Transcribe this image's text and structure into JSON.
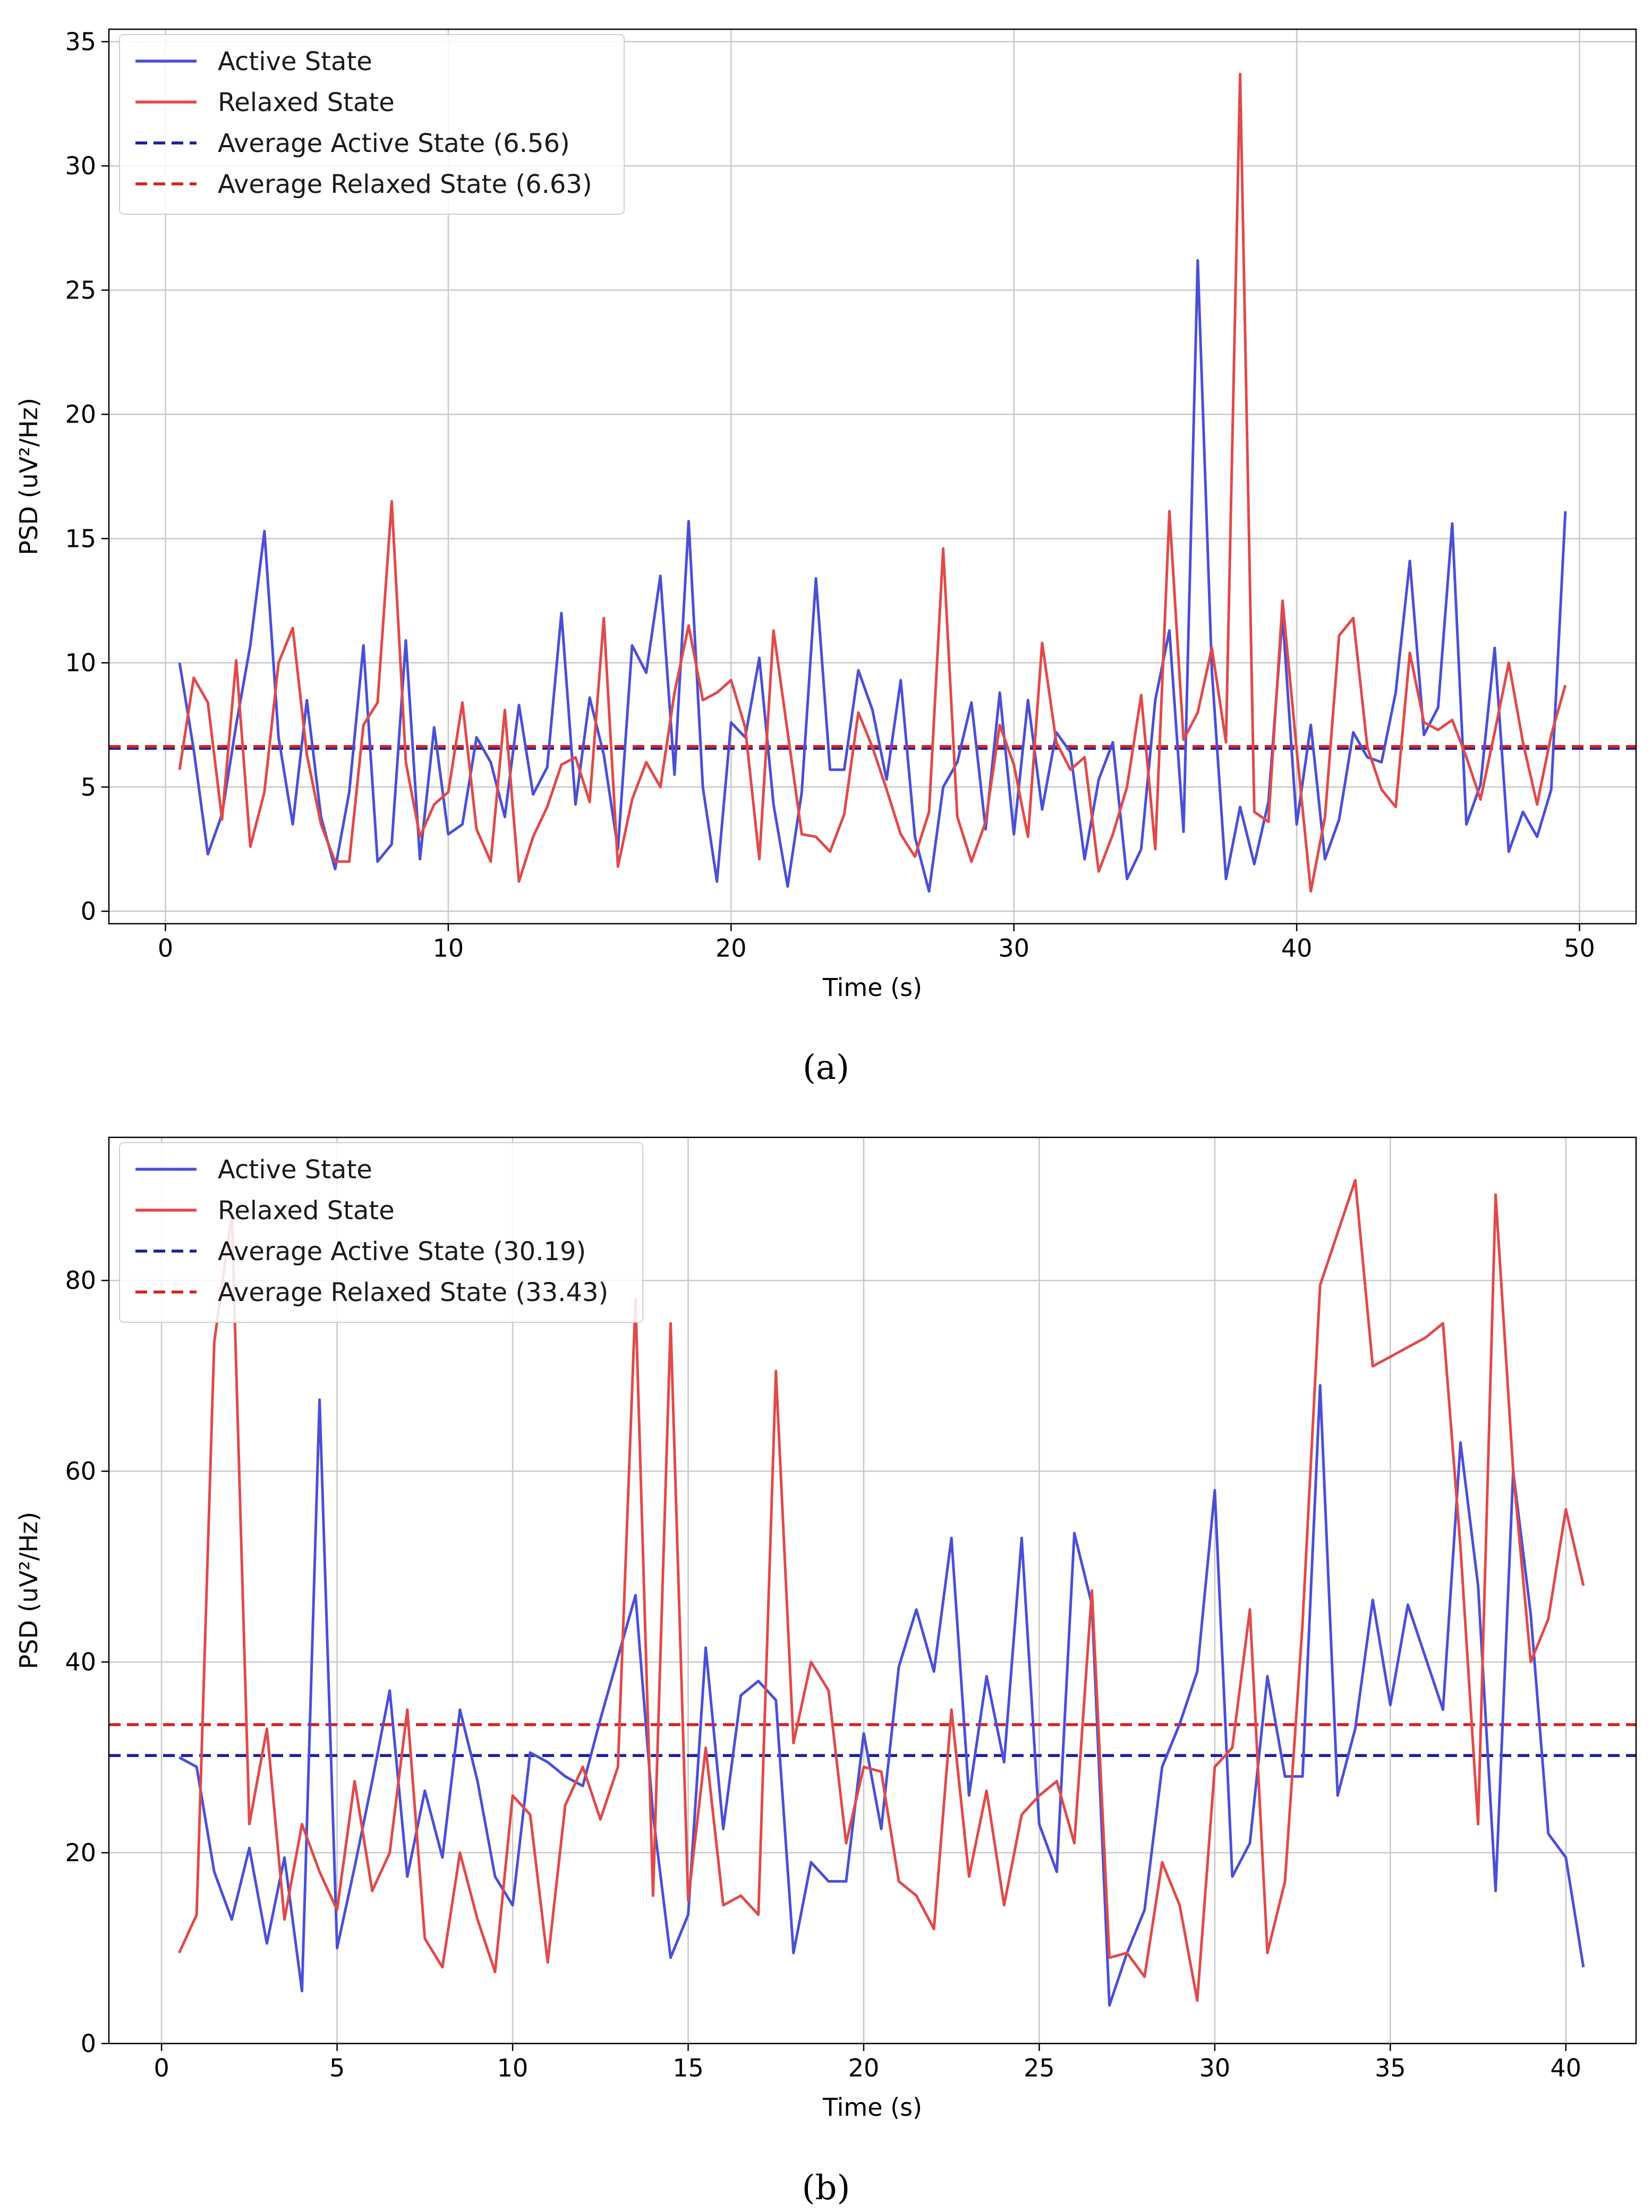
{
  "figure": {
    "colors": {
      "active": "#4a4fd6",
      "relaxed": "#e04a4a",
      "active_avg": "#1c1ca0",
      "relaxed_avg": "#d42020",
      "grid": "#c8c8c8"
    }
  },
  "chart_data": [
    {
      "type": "line",
      "panel_label": "a",
      "caption": "(a)",
      "xlabel": "Time (s)",
      "ylabel": "PSD (uV²/Hz)",
      "xlim": [
        -2,
        52
      ],
      "ylim": [
        -0.5,
        35.5
      ],
      "xticks": [
        0,
        10,
        20,
        30,
        40,
        50
      ],
      "yticks": [
        0,
        5,
        10,
        15,
        20,
        25,
        30,
        35
      ],
      "grid": true,
      "legend_position": "top-left",
      "series": [
        {
          "name": "Active State",
          "style": "solid",
          "color": "#4a4fd6",
          "x": [
            0.5,
            1.0,
            1.5,
            2.0,
            2.5,
            3.0,
            3.5,
            4.0,
            4.5,
            5.0,
            5.5,
            6.0,
            6.5,
            7.0,
            7.5,
            8.0,
            8.5,
            9.0,
            9.5,
            10.0,
            10.5,
            11.0,
            11.5,
            12.0,
            12.5,
            13.0,
            13.5,
            14.0,
            14.5,
            15.0,
            15.5,
            16.0,
            16.5,
            17.0,
            17.5,
            18.0,
            18.5,
            19.0,
            19.5,
            20.0,
            20.5,
            21.0,
            21.5,
            22.0,
            22.5,
            23.0,
            23.5,
            24.0,
            24.5,
            25.0,
            25.5,
            26.0,
            26.5,
            27.0,
            27.5,
            28.0,
            28.5,
            29.0,
            29.5,
            30.0,
            30.5,
            31.0,
            31.5,
            32.0,
            32.5,
            33.0,
            33.5,
            34.0,
            34.5,
            35.0,
            35.5,
            36.0,
            36.5,
            37.0,
            37.5,
            38.0,
            38.5,
            39.0,
            39.5,
            40.0,
            40.5,
            41.0,
            41.5,
            42.0,
            42.5,
            43.0,
            43.5,
            44.0,
            44.5,
            45.0,
            45.5,
            46.0,
            46.5,
            47.0,
            47.5,
            48.0,
            48.5,
            49.0,
            49.5
          ],
          "values": [
            10.0,
            6.5,
            2.3,
            3.9,
            7.5,
            10.7,
            15.3,
            7.0,
            3.5,
            8.5,
            3.8,
            1.7,
            4.8,
            10.7,
            2.0,
            2.7,
            10.9,
            2.1,
            7.4,
            3.1,
            3.5,
            7.0,
            6.0,
            3.8,
            8.3,
            4.7,
            5.8,
            12.0,
            4.3,
            8.6,
            6.3,
            2.5,
            10.7,
            9.6,
            13.5,
            5.5,
            15.7,
            5.0,
            1.2,
            7.6,
            7.0,
            10.2,
            4.3,
            1.0,
            4.8,
            13.4,
            5.7,
            5.7,
            9.7,
            8.1,
            5.3,
            9.3,
            3.0,
            0.8,
            5.0,
            6.0,
            8.4,
            3.3,
            8.8,
            3.1,
            8.5,
            4.1,
            7.2,
            6.4,
            2.1,
            5.3,
            6.8,
            1.3,
            2.5,
            8.5,
            11.3,
            3.2,
            26.2,
            9.7,
            1.3,
            4.2,
            1.9,
            4.4,
            11.9,
            3.5,
            7.5,
            2.1,
            3.7,
            7.2,
            6.2,
            6.0,
            8.8,
            14.1,
            7.1,
            8.2,
            15.6,
            3.5,
            5.1,
            10.6,
            2.4,
            4.0,
            3.0,
            4.9,
            16.1
          ]
        },
        {
          "name": "Relaxed State",
          "style": "solid",
          "color": "#e04a4a",
          "x": [
            0.5,
            1.0,
            1.5,
            2.0,
            2.5,
            3.0,
            3.5,
            4.0,
            4.5,
            5.0,
            5.5,
            6.0,
            6.5,
            7.0,
            7.5,
            8.0,
            8.5,
            9.0,
            9.5,
            10.0,
            10.5,
            11.0,
            11.5,
            12.0,
            12.5,
            13.0,
            13.5,
            14.0,
            14.5,
            15.0,
            15.5,
            16.0,
            16.5,
            17.0,
            17.5,
            18.0,
            18.5,
            19.0,
            19.5,
            20.0,
            20.5,
            21.0,
            21.5,
            22.0,
            22.5,
            23.0,
            23.5,
            24.0,
            24.5,
            25.0,
            25.5,
            26.0,
            26.5,
            27.0,
            27.5,
            28.0,
            28.5,
            29.0,
            29.5,
            30.0,
            30.5,
            31.0,
            31.5,
            32.0,
            32.5,
            33.0,
            33.5,
            34.0,
            34.5,
            35.0,
            35.5,
            36.0,
            36.5,
            37.0,
            37.5,
            38.0,
            38.5,
            39.0,
            39.5,
            40.0,
            40.5,
            41.0,
            41.5,
            42.0,
            42.5,
            43.0,
            43.5,
            44.0,
            44.5,
            45.0,
            45.5,
            46.0,
            46.5,
            47.0,
            47.5,
            48.0,
            48.5,
            49.0,
            49.5
          ],
          "values": [
            5.7,
            9.4,
            8.4,
            3.7,
            10.1,
            2.6,
            4.8,
            10.0,
            11.4,
            6.3,
            3.5,
            2.0,
            2.0,
            7.5,
            8.4,
            16.5,
            6.0,
            3.0,
            4.3,
            4.8,
            8.4,
            3.3,
            2.0,
            8.1,
            1.2,
            3.0,
            4.2,
            5.9,
            6.2,
            4.4,
            11.8,
            1.8,
            4.5,
            6.0,
            5.0,
            8.8,
            11.5,
            8.5,
            8.8,
            9.3,
            7.4,
            2.1,
            11.3,
            7.2,
            3.1,
            3.0,
            2.4,
            3.9,
            8.0,
            6.6,
            4.9,
            3.1,
            2.2,
            4.0,
            14.6,
            3.8,
            2.0,
            3.6,
            7.5,
            5.9,
            3.0,
            10.8,
            6.8,
            5.7,
            6.2,
            1.6,
            3.1,
            5.0,
            8.7,
            2.5,
            16.1,
            6.9,
            8.0,
            10.6,
            6.8,
            33.7,
            4.0,
            3.6,
            12.5,
            6.5,
            0.8,
            3.8,
            11.1,
            11.8,
            6.6,
            4.9,
            4.2,
            10.4,
            7.6,
            7.3,
            7.7,
            6.2,
            4.5,
            7.2,
            10.0,
            6.8,
            4.3,
            7.1,
            9.1
          ]
        },
        {
          "name": "Average Active State (6.56)",
          "style": "dashed",
          "color": "#1c1ca0",
          "value": 6.56
        },
        {
          "name": "Average Relaxed State (6.63)",
          "style": "dashed",
          "color": "#d42020",
          "value": 6.63
        }
      ]
    },
    {
      "type": "line",
      "panel_label": "b",
      "caption": "(b)",
      "xlabel": "Time (s)",
      "ylabel": "PSD (uV²/Hz)",
      "xlim": [
        -1.5,
        42.0
      ],
      "ylim": [
        0,
        95
      ],
      "xticks": [
        0,
        5,
        10,
        15,
        20,
        25,
        30,
        35,
        40
      ],
      "yticks": [
        0,
        20,
        40,
        60,
        80
      ],
      "grid": true,
      "legend_position": "top-left",
      "series": [
        {
          "name": "Active State",
          "style": "solid",
          "color": "#4a4fd6",
          "x": [
            0.5,
            1.0,
            1.5,
            2.0,
            2.5,
            3.0,
            3.5,
            4.0,
            4.5,
            5.0,
            5.5,
            6.0,
            6.5,
            7.0,
            7.5,
            8.0,
            8.5,
            9.0,
            9.5,
            10.0,
            10.5,
            11.0,
            11.5,
            12.0,
            12.5,
            13.0,
            13.5,
            14.0,
            14.5,
            15.0,
            15.5,
            16.0,
            16.5,
            17.0,
            17.5,
            18.0,
            18.5,
            19.0,
            19.5,
            20.0,
            20.5,
            21.0,
            21.5,
            22.0,
            22.5,
            23.0,
            23.5,
            24.0,
            24.5,
            25.0,
            25.5,
            26.0,
            26.5,
            27.0,
            27.5,
            28.0,
            28.5,
            29.0,
            29.5,
            30.0,
            30.5,
            31.0,
            31.5,
            32.0,
            32.5,
            33.0,
            33.5,
            34.0,
            34.5,
            35.0,
            35.5,
            36.0,
            36.5,
            37.0,
            37.5,
            38.0,
            38.5,
            39.0,
            39.5,
            40.0,
            40.5
          ],
          "values": [
            30.0,
            29.0,
            18.0,
            13.0,
            20.5,
            10.5,
            19.5,
            5.5,
            67.5,
            10.0,
            18.5,
            27.5,
            37.0,
            17.5,
            26.5,
            19.5,
            35.0,
            27.5,
            17.5,
            14.5,
            30.5,
            29.5,
            28.0,
            27.0,
            34.0,
            40.5,
            47.0,
            24.0,
            9.0,
            13.5,
            41.5,
            22.5,
            36.5,
            38.0,
            36.0,
            9.5,
            19.0,
            17.0,
            17.0,
            32.5,
            22.5,
            39.5,
            45.5,
            39.0,
            53.0,
            26.0,
            38.5,
            29.5,
            53.0,
            23.0,
            18.0,
            53.5,
            46.0,
            4.0,
            9.5,
            14.0,
            29.0,
            33.5,
            39.0,
            58.0,
            17.5,
            21.0,
            38.5,
            28.0,
            28.0,
            69.0,
            26.0,
            33.0,
            46.5,
            35.5,
            46.0,
            40.5,
            35.0,
            63.0,
            48.0,
            16.0,
            60.0,
            45.0,
            22.0,
            19.5,
            8.0
          ]
        },
        {
          "name": "Relaxed State",
          "style": "solid",
          "color": "#e04a4a",
          "x": [
            0.5,
            1.0,
            1.5,
            2.0,
            2.5,
            3.0,
            3.5,
            4.0,
            4.5,
            5.0,
            5.5,
            6.0,
            6.5,
            7.0,
            7.5,
            8.0,
            8.5,
            9.0,
            9.5,
            10.0,
            10.5,
            11.0,
            11.5,
            12.0,
            12.5,
            13.0,
            13.5,
            14.0,
            14.5,
            15.0,
            15.5,
            16.0,
            16.5,
            17.0,
            17.5,
            18.0,
            18.5,
            19.0,
            19.5,
            20.0,
            20.5,
            21.0,
            21.5,
            22.0,
            22.5,
            23.0,
            23.5,
            24.0,
            24.5,
            25.0,
            25.5,
            26.0,
            26.5,
            27.0,
            27.5,
            28.0,
            28.5,
            29.0,
            29.5,
            30.0,
            30.5,
            31.0,
            31.5,
            32.0,
            32.5,
            33.0,
            33.5,
            34.0,
            34.5,
            35.0,
            35.5,
            36.0,
            36.5,
            37.0,
            37.5,
            38.0,
            38.5,
            39.0,
            39.5,
            40.0,
            40.5
          ],
          "values": [
            9.5,
            13.5,
            73.5,
            87.0,
            23.0,
            33.0,
            13.0,
            23.0,
            18.0,
            14.0,
            27.5,
            16.0,
            20.0,
            35.0,
            11.0,
            8.0,
            20.0,
            13.0,
            7.5,
            26.0,
            24.0,
            8.5,
            25.0,
            29.0,
            23.5,
            29.0,
            78.0,
            15.5,
            75.5,
            15.0,
            31.0,
            14.5,
            15.5,
            13.5,
            70.5,
            31.5,
            40.0,
            37.0,
            21.0,
            29.0,
            28.5,
            17.0,
            15.5,
            12.0,
            35.0,
            17.5,
            26.5,
            14.5,
            24.0,
            26.0,
            27.5,
            21.0,
            47.5,
            9.0,
            9.5,
            7.0,
            19.0,
            14.5,
            4.5,
            29.0,
            31.0,
            45.5,
            9.5,
            17.0,
            44.0,
            79.5,
            85.0,
            90.5,
            71.0,
            72.0,
            73.0,
            74.0,
            75.5,
            52.0,
            23.0,
            89.0,
            60.0,
            40.0,
            44.5,
            56.0,
            48.0
          ]
        },
        {
          "name": "Average Active State (30.19)",
          "style": "dashed",
          "color": "#1c1ca0",
          "value": 30.19
        },
        {
          "name": "Average Relaxed State (33.43)",
          "style": "dashed",
          "color": "#d42020",
          "value": 33.43
        }
      ]
    }
  ]
}
